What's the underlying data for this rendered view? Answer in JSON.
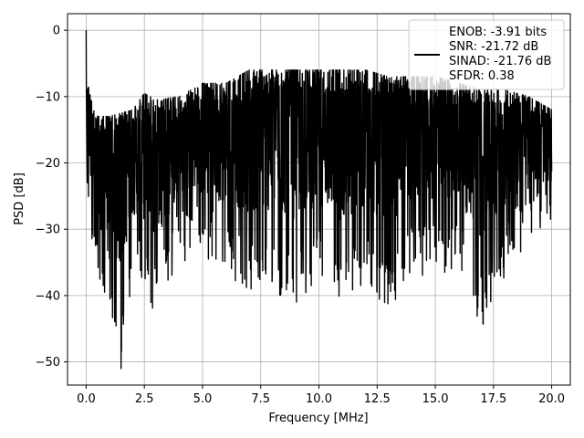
{
  "chart_data": {
    "type": "line",
    "xlabel": "Frequency [MHz]",
    "ylabel": "PSD [dB]",
    "xlim": [
      -0.8,
      20.8
    ],
    "ylim": [
      -53.5,
      2.5
    ],
    "x_ticks": [
      0.0,
      2.5,
      5.0,
      7.5,
      10.0,
      12.5,
      15.0,
      17.5,
      20.0
    ],
    "x_tick_labels": [
      "0.0",
      "2.5",
      "5.0",
      "7.5",
      "10.0",
      "12.5",
      "15.0",
      "17.5",
      "20.0"
    ],
    "y_ticks": [
      0,
      -10,
      -20,
      -30,
      -40,
      -50
    ],
    "y_tick_labels": [
      "0",
      "−10",
      "−20",
      "−30",
      "−40",
      "−50"
    ],
    "grid": true,
    "legend_position": "top-right",
    "legend_lines": [
      "ENOB: -3.91 bits",
      "SNR: -21.72 dB",
      "SINAD: -21.76 dB",
      "SFDR: 0.38"
    ],
    "series": [
      {
        "color": "#000000",
        "x_range": [
          0.0,
          20.0
        ],
        "peak": {
          "x": 0.0,
          "y": 0.0
        },
        "min": {
          "x": 1.5,
          "y": -51.0
        },
        "upper_envelope": [
          [
            0.1,
            -8
          ],
          [
            0.3,
            -12
          ],
          [
            0.5,
            -13
          ],
          [
            1.0,
            -13
          ],
          [
            2.0,
            -12
          ],
          [
            2.5,
            -9.5
          ],
          [
            3.0,
            -10.5
          ],
          [
            4.0,
            -10
          ],
          [
            5.0,
            -8
          ],
          [
            6.0,
            -8
          ],
          [
            7.0,
            -6
          ],
          [
            8.0,
            -6
          ],
          [
            9.0,
            -6
          ],
          [
            10.0,
            -6
          ],
          [
            11.0,
            -6
          ],
          [
            12.0,
            -6
          ],
          [
            13.0,
            -7
          ],
          [
            14.0,
            -7
          ],
          [
            15.0,
            -7
          ],
          [
            16.0,
            -8
          ],
          [
            17.0,
            -9
          ],
          [
            18.0,
            -9
          ],
          [
            19.0,
            -10
          ],
          [
            20.0,
            -12
          ]
        ],
        "lower_envelope": [
          [
            0.1,
            -28
          ],
          [
            0.5,
            -40
          ],
          [
            1.0,
            -41
          ],
          [
            1.5,
            -51
          ],
          [
            2.0,
            -37
          ],
          [
            3.0,
            -43
          ],
          [
            4.0,
            -35
          ],
          [
            5.0,
            -34
          ],
          [
            6.0,
            -37
          ],
          [
            7.0,
            -40
          ],
          [
            8.0,
            -40
          ],
          [
            9.0,
            -42
          ],
          [
            10.0,
            -38
          ],
          [
            11.0,
            -43
          ],
          [
            12.0,
            -38
          ],
          [
            13.0,
            -44
          ],
          [
            14.0,
            -37
          ],
          [
            15.0,
            -37
          ],
          [
            16.0,
            -37
          ],
          [
            17.0,
            -45
          ],
          [
            18.0,
            -37
          ],
          [
            19.0,
            -32
          ],
          [
            20.0,
            -29
          ]
        ]
      }
    ]
  }
}
